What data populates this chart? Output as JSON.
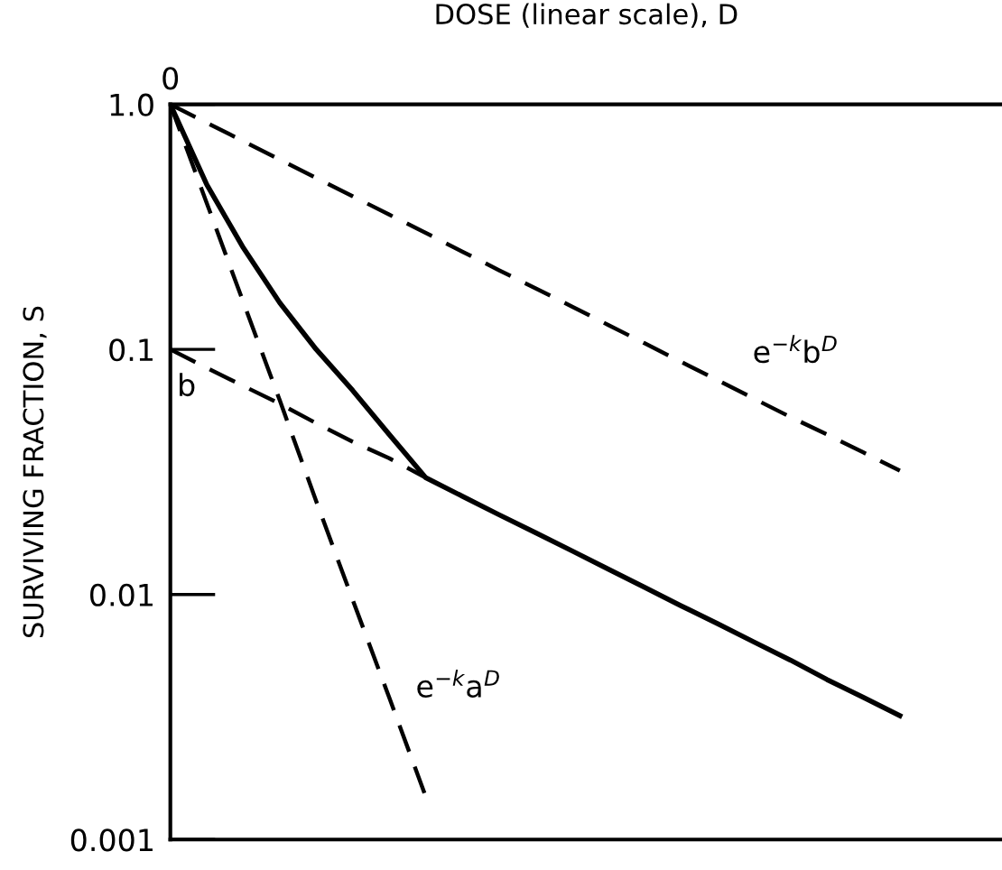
{
  "chart_data": {
    "type": "line",
    "xlabel": "DOSE (linear scale), D",
    "ylabel": "SURVIVING FRACTION, S",
    "log": "y",
    "categories": [
      null,
      null,
      null,
      null,
      null,
      null,
      null,
      null,
      null,
      null,
      null,
      null,
      null,
      null,
      null,
      null,
      null,
      null,
      null,
      null,
      null
    ],
    "ylim": [
      0.001,
      1.0
    ],
    "yticks": [
      {
        "value": 0.001,
        "label": "0.001"
      },
      {
        "value": 0.01,
        "label": "0.01"
      },
      {
        "value": 0.1,
        "label": "0.1"
      },
      {
        "value": 1.0,
        "label": "1.0"
      }
    ],
    "grid": false,
    "legend": false,
    "series": [
      {
        "color": "#000000",
        "line_style": "dashed",
        "values": [
          1.0,
          0.841,
          0.708,
          0.596,
          0.501,
          0.422,
          0.355,
          0.299,
          0.251,
          0.211,
          0.178,
          0.15,
          0.126,
          0.106,
          0.089,
          0.075,
          0.063,
          0.053,
          0.045,
          0.038,
          0.032
        ]
      },
      {
        "color": "#000000",
        "line_style": "dashed",
        "values": [
          1.0,
          0.395,
          0.156,
          0.062,
          0.024,
          0.0095,
          0.0038,
          0.0015,
          null,
          null,
          null,
          null,
          null,
          null,
          null,
          null,
          null,
          null,
          null,
          null,
          null
        ]
      },
      {
        "color": "#000000",
        "line_style": "dashed",
        "values": [
          0.1,
          0.084,
          0.071,
          0.06,
          0.05,
          0.042,
          0.036,
          0.03,
          null,
          null,
          null,
          null,
          null,
          null,
          null,
          null,
          null,
          null,
          null,
          null,
          null
        ]
      },
      {
        "color": "#000000",
        "line_style": "solid",
        "values": [
          1.0,
          0.47,
          0.26,
          0.155,
          0.1,
          0.068,
          0.045,
          0.03,
          0.0252,
          0.0212,
          0.0179,
          0.0151,
          0.0127,
          0.0107,
          0.009,
          0.0076,
          0.0064,
          0.0054,
          0.0045,
          0.0038,
          0.0032
        ]
      }
    ],
    "annotations": [
      "0",
      "e$^{−k}$b$^{D}$",
      "e$^{−k}$a$^{D}$",
      "b"
    ]
  }
}
